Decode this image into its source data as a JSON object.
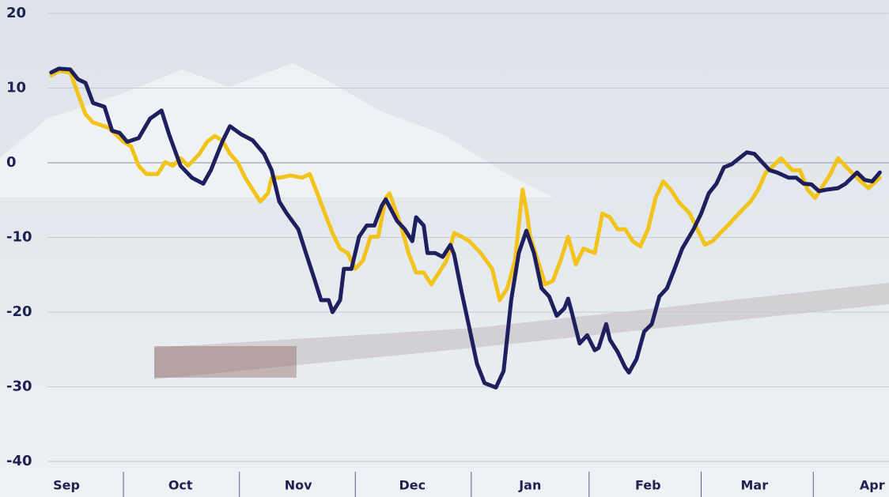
{
  "chart_data": {
    "type": "line",
    "xlim": [
      -5,
      216
    ],
    "xticks": [
      {
        "value": 0,
        "label": "Sep"
      },
      {
        "value": 30,
        "label": "Oct"
      },
      {
        "value": 61,
        "label": "Nov"
      },
      {
        "value": 91,
        "label": "Dec"
      },
      {
        "value": 122,
        "label": "Jan"
      },
      {
        "value": 153,
        "label": "Feb"
      },
      {
        "value": 181,
        "label": "Mar"
      },
      {
        "value": 212,
        "label": "Apr"
      }
    ],
    "ylim": [
      -40,
      20
    ],
    "yticks": [
      -40,
      -30,
      -20,
      -10,
      0,
      10,
      20
    ],
    "grid": true,
    "series": [
      {
        "color": "#f2c31a",
        "x": [
          -4,
          -2,
          1,
          3,
          5,
          7,
          11,
          13,
          15,
          17,
          19,
          21,
          24,
          26,
          28,
          30,
          32,
          35,
          37,
          39,
          41,
          43,
          45,
          47,
          49,
          51,
          53,
          54,
          56,
          59,
          62,
          64,
          66,
          68,
          70,
          72,
          74,
          76,
          78,
          80,
          82,
          84,
          85,
          88,
          90,
          92,
          94,
          96,
          98,
          100,
          102,
          104,
          106,
          109,
          112,
          114,
          116,
          118,
          120,
          121,
          122,
          124,
          126,
          128,
          130,
          132,
          134,
          136,
          139,
          141,
          143,
          145,
          147,
          149,
          151,
          153,
          155,
          157,
          159,
          161,
          164,
          166,
          168,
          170,
          172,
          174,
          176,
          178,
          180,
          182,
          184,
          186,
          188,
          191,
          193,
          195,
          197,
          199,
          201,
          203,
          204,
          206,
          209,
          211,
          214
        ],
        "values": [
          11.7,
          12.3,
          12.1,
          9.3,
          6.5,
          5.4,
          4.7,
          3.8,
          2.8,
          2.2,
          -0.4,
          -1.5,
          -1.5,
          0.1,
          -0.4,
          0.6,
          -0.4,
          1.2,
          2.8,
          3.6,
          3.0,
          1.2,
          0.1,
          -2.0,
          -3.6,
          -5.2,
          -4.1,
          -2.0,
          -2.0,
          -1.7,
          -2.0,
          -1.5,
          -4.1,
          -6.8,
          -9.4,
          -11.5,
          -12.1,
          -14.2,
          -13.1,
          -9.9,
          -9.9,
          -4.7,
          -4.1,
          -8.4,
          -12.1,
          -14.7,
          -14.7,
          -16.3,
          -14.7,
          -13.1,
          -9.4,
          -9.9,
          -10.5,
          -12.1,
          -14.2,
          -18.4,
          -16.8,
          -13.1,
          -3.6,
          -6.2,
          -9.9,
          -13.1,
          -16.3,
          -15.8,
          -13.1,
          -9.9,
          -13.6,
          -11.5,
          -12.1,
          -6.8,
          -7.3,
          -8.9,
          -8.9,
          -10.5,
          -11.2,
          -8.9,
          -4.7,
          -2.5,
          -3.6,
          -5.2,
          -6.8,
          -8.9,
          -11.0,
          -10.5,
          -9.4,
          -8.4,
          -7.3,
          -6.2,
          -5.2,
          -3.6,
          -1.3,
          -0.4,
          0.6,
          -1.0,
          -1.0,
          -3.6,
          -4.7,
          -3.1,
          -1.5,
          0.6,
          0.1,
          -1.0,
          -2.5,
          -3.4,
          -2.0
        ]
      },
      {
        "color": "#1f1f5e",
        "x": [
          -4,
          -2,
          1,
          3,
          5,
          7,
          10,
          12,
          14,
          16,
          19,
          22,
          25,
          27,
          30,
          33,
          36,
          38,
          41,
          43,
          46,
          49,
          52,
          54,
          56,
          58,
          61,
          63,
          65,
          67,
          69,
          70,
          72,
          73,
          75,
          77,
          79,
          81,
          83,
          84,
          87,
          89,
          91,
          92,
          94,
          95,
          97,
          99,
          101,
          102,
          104,
          106,
          108,
          110,
          113,
          115,
          117,
          119,
          121,
          123,
          125,
          127,
          129,
          131,
          132,
          133,
          135,
          137,
          139,
          140,
          142,
          143,
          145,
          147,
          148,
          150,
          152,
          154,
          156,
          158,
          160,
          162,
          165,
          167,
          169,
          171,
          173,
          175,
          177,
          179,
          181,
          183,
          185,
          187,
          190,
          192,
          194,
          196,
          198,
          200,
          203,
          205,
          208,
          210,
          212,
          214
        ],
        "values": [
          12.1,
          12.6,
          12.5,
          11.2,
          10.7,
          8.0,
          7.5,
          4.3,
          4.0,
          2.8,
          3.3,
          5.9,
          7.0,
          3.8,
          -0.4,
          -2.0,
          -2.8,
          -1.0,
          2.8,
          4.9,
          3.8,
          3.0,
          1.2,
          -1.0,
          -5.2,
          -6.8,
          -8.9,
          -12.1,
          -15.2,
          -18.4,
          -18.4,
          -20.0,
          -18.4,
          -14.2,
          -14.2,
          -9.9,
          -8.4,
          -8.4,
          -5.7,
          -4.9,
          -7.8,
          -8.9,
          -10.5,
          -7.3,
          -8.4,
          -12.1,
          -12.1,
          -12.6,
          -11.0,
          -12.3,
          -17.4,
          -22.1,
          -26.9,
          -29.5,
          -30.1,
          -27.9,
          -18.4,
          -12.1,
          -9.1,
          -12.1,
          -16.8,
          -17.9,
          -20.5,
          -19.5,
          -18.2,
          -20.1,
          -24.2,
          -23.1,
          -25.1,
          -24.8,
          -21.6,
          -23.7,
          -25.3,
          -27.4,
          -28.1,
          -26.3,
          -22.6,
          -21.6,
          -17.9,
          -16.8,
          -14.2,
          -11.5,
          -8.9,
          -6.8,
          -4.1,
          -2.8,
          -0.6,
          -0.2,
          0.6,
          1.4,
          1.2,
          0.1,
          -1.0,
          -1.3,
          -2.0,
          -2.0,
          -2.8,
          -2.9,
          -3.8,
          -3.6,
          -3.4,
          -2.8,
          -1.3,
          -2.3,
          -2.5,
          -1.3
        ]
      }
    ]
  }
}
